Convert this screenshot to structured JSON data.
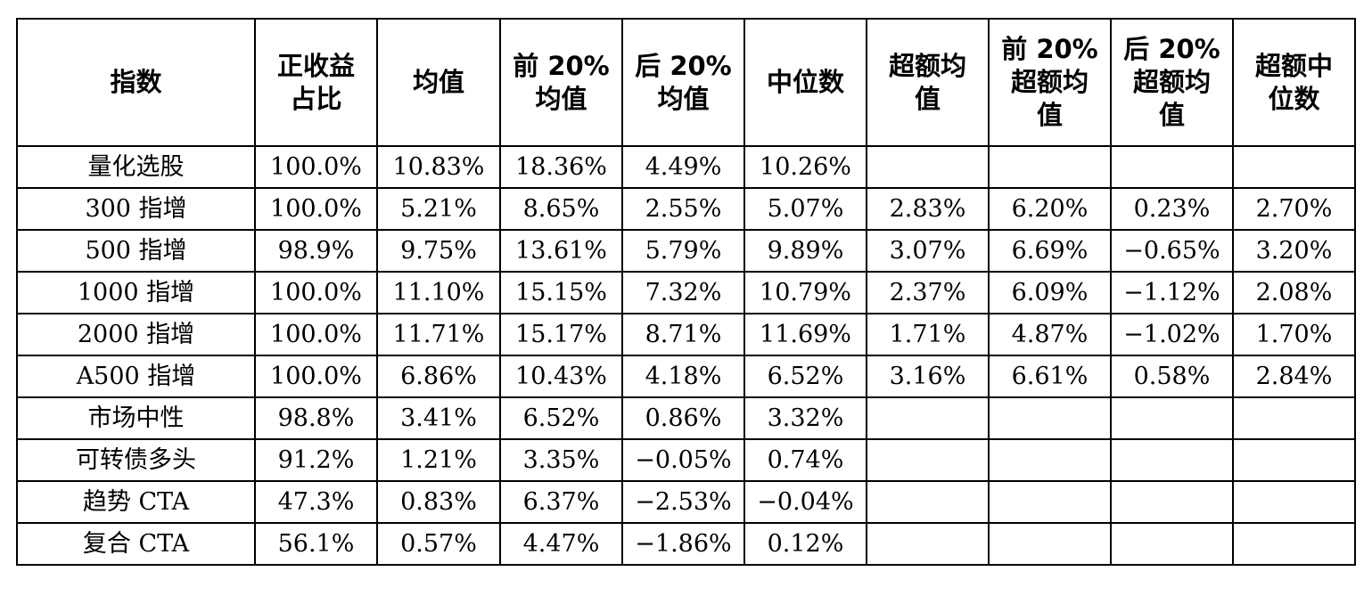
{
  "table": {
    "header": [
      [
        "指数"
      ],
      [
        "正收益",
        "占比"
      ],
      [
        "均值"
      ],
      [
        "前 20%",
        "均值"
      ],
      [
        "后 20%",
        "均值"
      ],
      [
        "中位数"
      ],
      [
        "超额均",
        "值"
      ],
      [
        "前 20%",
        "超额均",
        "值"
      ],
      [
        "后 20%",
        "超额均",
        "值"
      ],
      [
        "超额中",
        "位数"
      ]
    ],
    "rows": [
      [
        "量化选股",
        "100.0%",
        "10.83%",
        "18.36%",
        "4.49%",
        "10.26%"
      ],
      [
        "300 指增",
        "100.0%",
        "5.21%",
        "8.65%",
        "2.55%",
        "5.07%",
        "2.83%",
        "6.20%",
        "0.23%",
        "2.70%"
      ],
      [
        "500 指增",
        "98.9%",
        "9.75%",
        "13.61%",
        "5.79%",
        "9.89%",
        "3.07%",
        "6.69%",
        "−0.65%",
        "3.20%"
      ],
      [
        "1000 指增",
        "100.0%",
        "11.10%",
        "15.15%",
        "7.32%",
        "10.79%",
        "2.37%",
        "6.09%",
        "−1.12%",
        "2.08%"
      ],
      [
        "2000 指增",
        "100.0%",
        "11.71%",
        "15.17%",
        "8.71%",
        "11.69%",
        "1.71%",
        "4.87%",
        "−1.02%",
        "1.70%"
      ],
      [
        "A500 指增",
        "100.0%",
        "6.86%",
        "10.43%",
        "4.18%",
        "6.52%",
        "3.16%",
        "6.61%",
        "0.58%",
        "2.84%"
      ],
      [
        "市场中性",
        "98.8%",
        "3.41%",
        "6.52%",
        "0.86%",
        "3.32%"
      ],
      [
        "可转债多头",
        "91.2%",
        "1.21%",
        "3.35%",
        "−0.05%",
        "0.74%"
      ],
      [
        "趋势 CTA",
        "47.3%",
        "0.83%",
        "6.37%",
        "−2.53%",
        "−0.04%"
      ],
      [
        "复合 CTA",
        "56.1%",
        "0.57%",
        "4.47%",
        "−1.86%",
        "0.12%"
      ]
    ]
  }
}
